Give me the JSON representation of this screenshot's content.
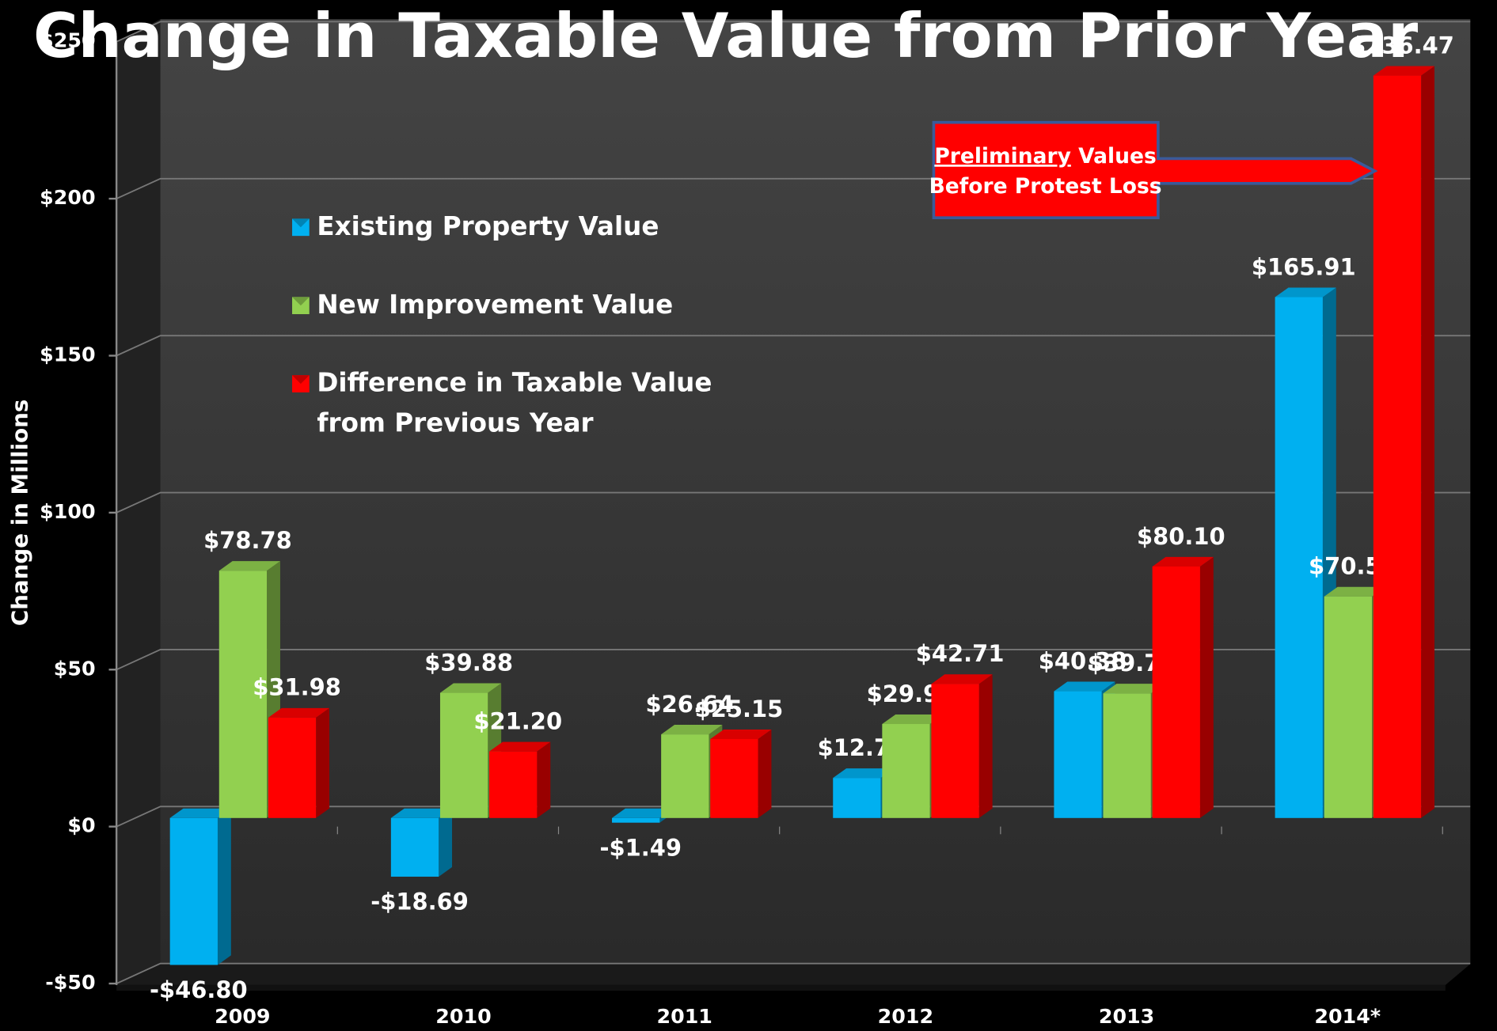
{
  "chart_data": {
    "type": "bar3d",
    "title": "Change in Taxable Value from Prior Year",
    "y_label": "Change in Millions",
    "categories": [
      "2009",
      "2010",
      "2011",
      "2012",
      "2013",
      "2014*"
    ],
    "series": [
      {
        "name": "Existing Property Value",
        "color": "#00b0f0",
        "values": [
          -46.8,
          -18.69,
          -1.49,
          12.77,
          40.38,
          165.91
        ],
        "value_labels": [
          "-$46.80",
          "-$18.69",
          "-$1.49",
          "$12.77",
          "$40.38",
          "$165.91"
        ]
      },
      {
        "name": "New Improvement Value",
        "color": "#92d050",
        "values": [
          78.78,
          39.88,
          26.64,
          29.94,
          39.71,
          70.56
        ],
        "value_labels": [
          "$78.78",
          "$39.88",
          "$26.64",
          "$29.94",
          "$39.71",
          "$70.56"
        ]
      },
      {
        "name": "Difference in Taxable Value from Previous Year",
        "color": "#ff0000",
        "values": [
          31.98,
          21.2,
          25.15,
          42.71,
          80.1,
          236.47
        ],
        "value_labels": [
          "$31.98",
          "$21.20",
          "$25.15",
          "$42.71",
          "$80.10",
          "$236.47"
        ]
      }
    ],
    "ylim": [
      -50,
      250
    ],
    "yticks": [
      {
        "value": -50,
        "label": "-$50"
      },
      {
        "value": 0,
        "label": "$0"
      },
      {
        "value": 50,
        "label": "$50"
      },
      {
        "value": 100,
        "label": "$100"
      },
      {
        "value": 150,
        "label": "$150"
      },
      {
        "value": 200,
        "label": "$200"
      },
      {
        "value": 250,
        "label": "$250"
      }
    ],
    "grid": true,
    "annotation": {
      "underlined": "Preliminary",
      "rest": " Values",
      "line2": "Before Protest Loss"
    }
  }
}
